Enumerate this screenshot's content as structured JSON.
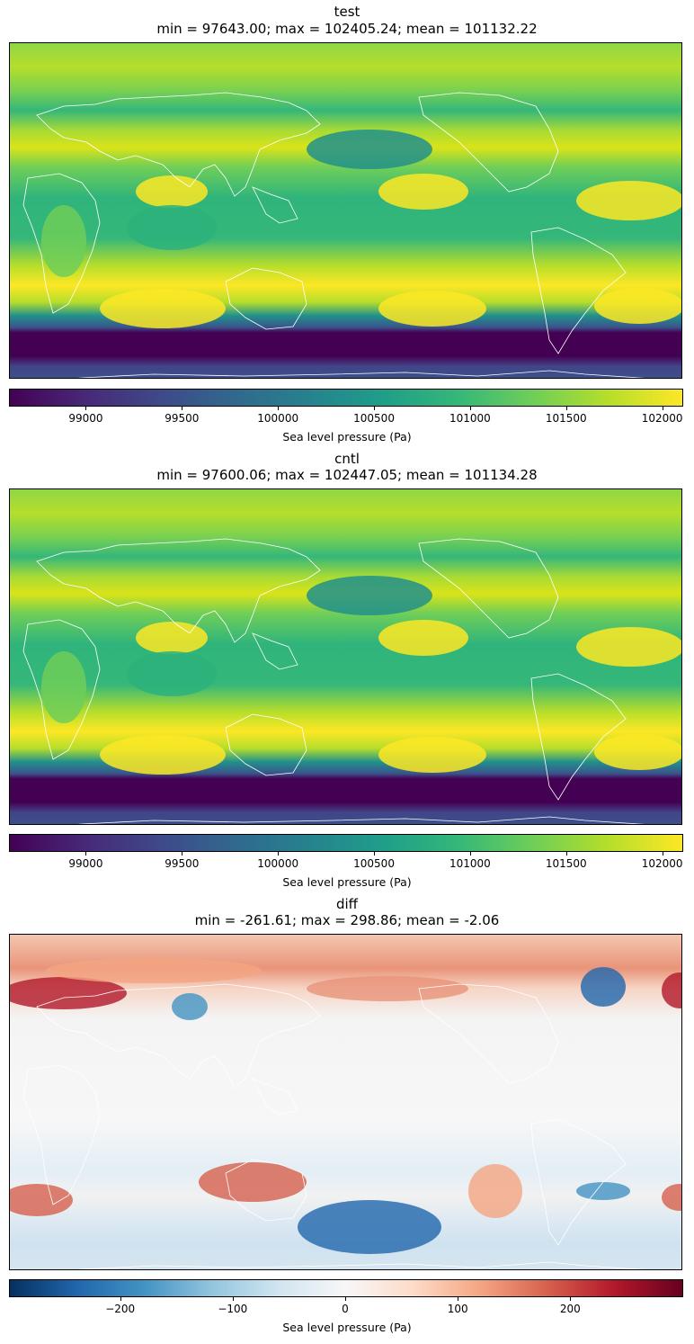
{
  "chart_data": [
    {
      "type": "heatmap",
      "title": "test",
      "subtitle": "min = 97643.00; max = 102405.24; mean = 101132.22",
      "colormap": "viridis",
      "clim": [
        98600,
        102100
      ],
      "colorbar_label": "Sea level pressure (Pa)",
      "colorbar_ticks": [
        "99000",
        "99500",
        "100000",
        "100500",
        "101000",
        "101500",
        "102000"
      ],
      "colorbar_tick_values": [
        99000,
        99500,
        100000,
        100500,
        101000,
        101500,
        102000
      ],
      "min": 97643.0,
      "max": 102405.24,
      "mean": 101132.22,
      "coastline_color": "#ffffff"
    },
    {
      "type": "heatmap",
      "title": "cntl",
      "subtitle": "min = 97600.06; max = 102447.05; mean = 101134.28",
      "colormap": "viridis",
      "clim": [
        98600,
        102100
      ],
      "colorbar_label": "Sea level pressure (Pa)",
      "colorbar_ticks": [
        "99000",
        "99500",
        "100000",
        "100500",
        "101000",
        "101500",
        "102000"
      ],
      "colorbar_tick_values": [
        99000,
        99500,
        100000,
        100500,
        101000,
        101500,
        102000
      ],
      "min": 97600.06,
      "max": 102447.05,
      "mean": 101134.28,
      "coastline_color": "#ffffff"
    },
    {
      "type": "heatmap",
      "title": "diff",
      "subtitle": "min = -261.61; max = 298.86; mean = -2.06",
      "colormap": "RdBu_r",
      "clim": [
        -298.86,
        298.86
      ],
      "colorbar_label": "Sea level pressure (Pa)",
      "colorbar_ticks": [
        "−200",
        "−100",
        "0",
        "100",
        "200"
      ],
      "colorbar_tick_values": [
        -200,
        -100,
        0,
        100,
        200
      ],
      "min": -261.61,
      "max": 298.86,
      "mean": -2.06,
      "coastline_color": "#ffffff"
    }
  ]
}
